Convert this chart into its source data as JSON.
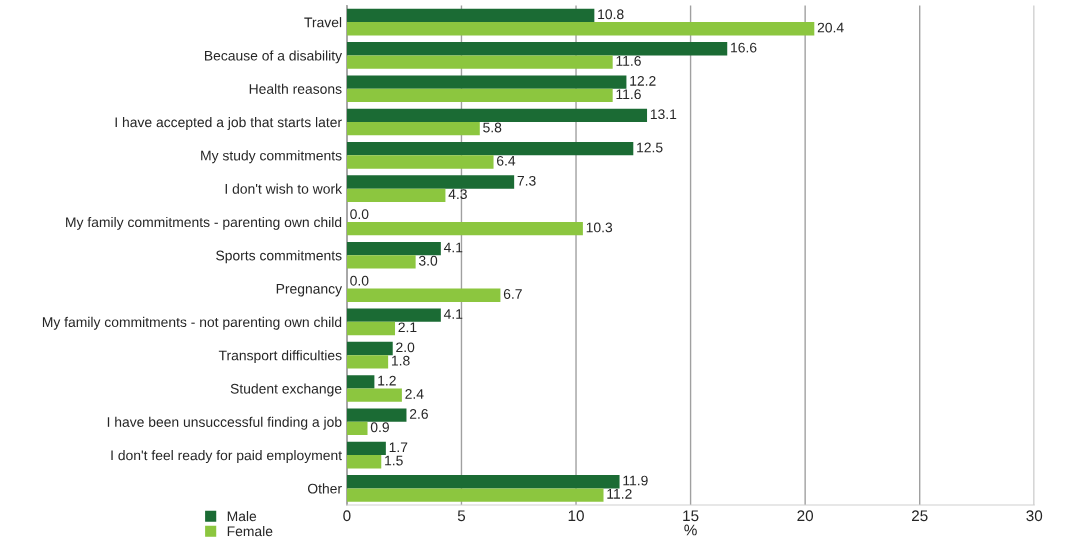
{
  "chart_data": {
    "type": "bar",
    "orientation": "horizontal",
    "xlabel": "%",
    "categories": [
      "Travel",
      "Because of a disability",
      "Health reasons",
      "I have accepted a job that starts later",
      "My study commitments",
      "I don't wish to work",
      "My family commitments - parenting own child",
      "Sports commitments",
      "Pregnancy",
      "My family commitments - not parenting own child",
      "Transport difficulties",
      "Student exchange",
      "I have been unsuccessful finding a job",
      "I don't feel ready for paid employment",
      "Other"
    ],
    "series": [
      {
        "name": "Male",
        "color": "#1b6b34",
        "values": [
          10.8,
          16.6,
          12.2,
          13.1,
          12.5,
          7.3,
          0.0,
          4.1,
          0.0,
          4.1,
          2.0,
          1.2,
          2.6,
          1.7,
          11.9
        ],
        "value_labels": [
          "10.8",
          "16.6",
          "12.2",
          "13.1",
          "12.5",
          "7.3",
          "0.0",
          "4.1",
          "0.0",
          "4.1",
          "2.0",
          "1.2",
          "2.6",
          "1.7",
          "11.9"
        ]
      },
      {
        "name": "Female",
        "color": "#8cc63f",
        "values": [
          20.4,
          11.6,
          11.6,
          5.8,
          6.4,
          4.3,
          10.3,
          3.0,
          6.7,
          2.1,
          1.8,
          2.4,
          0.9,
          1.5,
          11.2
        ],
        "value_labels": [
          "20.4",
          "11.6",
          "11.6",
          "5.8",
          "6.4",
          "4.3",
          "10.3",
          "3.0",
          "6.7",
          "2.1",
          "1.8",
          "2.4",
          "0.9",
          "1.5",
          "11.2"
        ]
      }
    ],
    "xlim": [
      0,
      30
    ],
    "xticks": [
      0,
      5,
      10,
      15,
      20,
      25,
      30
    ],
    "grid": "x",
    "legend": "bottom left"
  }
}
